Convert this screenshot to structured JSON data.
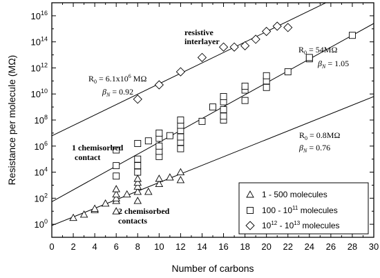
{
  "chart_data": {
    "type": "scatter",
    "title": "",
    "xlabel": "Number of carbons",
    "ylabel": "Resistance per molecule (MΩ)",
    "xlim": [
      0,
      30
    ],
    "ylim_log10": [
      -1,
      17
    ],
    "yscale": "log",
    "grid": false,
    "x_ticks": [
      {
        "value": 0,
        "label": "0"
      },
      {
        "value": 2,
        "label": "2"
      },
      {
        "value": 4,
        "label": "4"
      },
      {
        "value": 6,
        "label": "6"
      },
      {
        "value": 8,
        "label": "8"
      },
      {
        "value": 10,
        "label": "10"
      },
      {
        "value": 12,
        "label": "12"
      },
      {
        "value": 14,
        "label": "14"
      },
      {
        "value": 16,
        "label": "16"
      },
      {
        "value": 18,
        "label": "18"
      },
      {
        "value": 20,
        "label": "20"
      },
      {
        "value": 22,
        "label": "22"
      },
      {
        "value": 24,
        "label": "24"
      },
      {
        "value": 26,
        "label": "26"
      },
      {
        "value": 28,
        "label": "28"
      },
      {
        "value": 30,
        "label": "30"
      }
    ],
    "y_ticks": [
      {
        "exp": 0,
        "base": "10",
        "sup": "0"
      },
      {
        "exp": 2,
        "base": "10",
        "sup": "2"
      },
      {
        "exp": 4,
        "base": "10",
        "sup": "4"
      },
      {
        "exp": 6,
        "base": "10",
        "sup": "6"
      },
      {
        "exp": 8,
        "base": "10",
        "sup": "8"
      },
      {
        "exp": 10,
        "base": "10",
        "sup": "10"
      },
      {
        "exp": 12,
        "base": "10",
        "sup": "12"
      },
      {
        "exp": 14,
        "base": "10",
        "sup": "14"
      },
      {
        "exp": 16,
        "base": "10",
        "sup": "16"
      }
    ],
    "legend": {
      "placement": "bottom-right",
      "entries": [
        {
          "marker": "triangle",
          "text": "1 - 500 molecules"
        },
        {
          "marker": "square",
          "text": "100 - 10",
          "sup": "11",
          "text_after": " molecules"
        },
        {
          "marker": "diamond",
          "text": "10",
          "sup": "12",
          "text_mid": " - 10",
          "sup2": "13",
          "text_after": " molecules"
        }
      ]
    },
    "series": [
      {
        "marker": "triangle",
        "points": [
          [
            2,
            0.5
          ],
          [
            3,
            0.75
          ],
          [
            4,
            1.1
          ],
          [
            4,
            1.2
          ],
          [
            5,
            1.6
          ],
          [
            6,
            1.8
          ],
          [
            6,
            2.0
          ],
          [
            6,
            2.3
          ],
          [
            6,
            2.7
          ],
          [
            6,
            1.0
          ],
          [
            7,
            2.3
          ],
          [
            8,
            2.5
          ],
          [
            8,
            2.9
          ],
          [
            8,
            3.2
          ],
          [
            8,
            3.5
          ],
          [
            8,
            1.8
          ],
          [
            9,
            2.5
          ],
          [
            10,
            3.1
          ],
          [
            10,
            3.5
          ],
          [
            11,
            3.6
          ],
          [
            12,
            4.0
          ],
          [
            12,
            3.4
          ]
        ]
      },
      {
        "marker": "square",
        "points": [
          [
            6,
            3.7
          ],
          [
            6,
            4.5
          ],
          [
            6,
            5.7
          ],
          [
            8,
            4.0
          ],
          [
            8,
            4.5
          ],
          [
            8,
            5.0
          ],
          [
            8,
            6.2
          ],
          [
            9,
            6.4
          ],
          [
            10,
            5.2
          ],
          [
            10,
            5.6
          ],
          [
            10,
            6.0
          ],
          [
            10,
            6.6
          ],
          [
            10,
            7.0
          ],
          [
            11,
            6.8
          ],
          [
            12,
            5.8
          ],
          [
            12,
            6.3
          ],
          [
            12,
            6.7
          ],
          [
            12,
            7.2
          ],
          [
            12,
            7.6
          ],
          [
            12,
            8.0
          ],
          [
            14,
            7.9
          ],
          [
            15,
            9.0
          ],
          [
            16,
            8.0
          ],
          [
            16,
            8.3
          ],
          [
            16,
            8.8
          ],
          [
            16,
            9.4
          ],
          [
            16,
            9.8
          ],
          [
            18,
            9.5
          ],
          [
            18,
            10.3
          ],
          [
            18,
            10.6
          ],
          [
            20,
            10.5
          ],
          [
            20,
            11.0
          ],
          [
            20,
            11.4
          ],
          [
            22,
            11.7
          ],
          [
            24,
            12.7
          ],
          [
            24,
            12.8
          ],
          [
            28,
            14.5
          ]
        ]
      },
      {
        "marker": "diamond",
        "points": [
          [
            8,
            9.6
          ],
          [
            10,
            10.7
          ],
          [
            12,
            11.7
          ],
          [
            14,
            12.8
          ],
          [
            16,
            13.6
          ],
          [
            17,
            13.6
          ],
          [
            18,
            13.7
          ],
          [
            19,
            14.2
          ],
          [
            20,
            14.8
          ],
          [
            21,
            15.2
          ],
          [
            22,
            15.1
          ]
        ]
      }
    ],
    "fit_lines": [
      {
        "name": "beta 0.76",
        "intercept_log10": -0.097,
        "slope_log10_per_carbon": 0.33
      },
      {
        "name": "beta 1.05",
        "intercept_log10": 1.732,
        "slope_log10_per_carbon": 0.456
      },
      {
        "name": "beta 0.92",
        "intercept_log10": 6.785,
        "slope_log10_per_carbon": 0.4
      }
    ],
    "annotations": [
      {
        "id": "r0-54",
        "text_r0": "R",
        "sub_0": "0",
        "rest": " = 54MΩ",
        "beta_prefix": "β",
        "beta_sub": "N",
        "beta_rest": " = 1.05"
      },
      {
        "id": "r0-61",
        "text_r0": "R",
        "sub_0": "0",
        "rest": " = 6.1x10",
        "sup": "6",
        "rest2": " MΩ",
        "beta_prefix": "β",
        "beta_sub": "N",
        "beta_rest": " = 0.92"
      },
      {
        "id": "r0-08",
        "text_r0": "R",
        "sub_0": "0",
        "rest": " = 0.8MΩ",
        "beta_prefix": "β",
        "beta_sub": "N",
        "beta_rest": " = 0.76"
      }
    ],
    "labels": {
      "resistive_line1": "resistive",
      "resistive_line2": "interlayer",
      "one_chem_line1": "1 chemisorbed",
      "one_chem_line2": "contact",
      "two_chem_line1": "2 chemisorbed",
      "two_chem_line2": "contacts"
    }
  }
}
